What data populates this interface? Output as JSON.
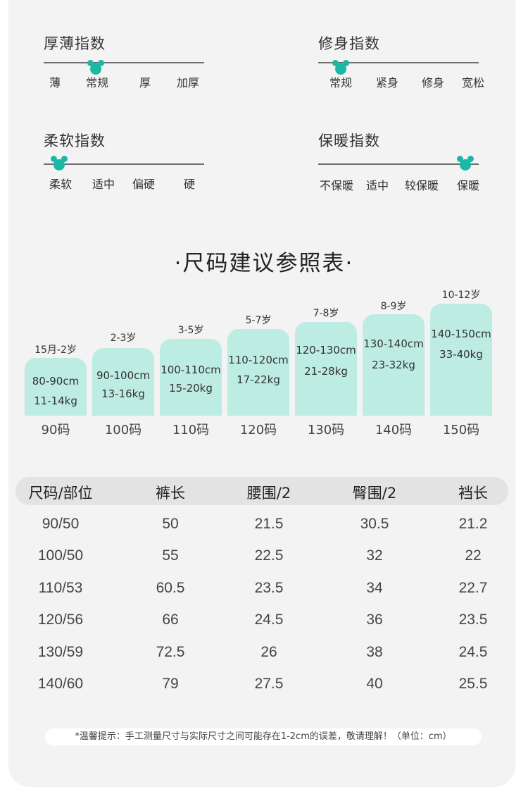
{
  "indices": [
    {
      "title": "厚薄指数",
      "labels": [
        "薄",
        "常规",
        "厚",
        "加厚"
      ],
      "selected_index": 1
    },
    {
      "title": "修身指数",
      "labels": [
        "常规",
        "紧身",
        "修身",
        "宽松"
      ],
      "selected_index": 0
    },
    {
      "title": "柔软指数",
      "labels": [
        "柔软",
        "适中",
        "偏硬",
        "硬"
      ],
      "selected_index": 0
    },
    {
      "title": "保暖指数",
      "labels": [
        "不保暖",
        "适中",
        "较保暖",
        "保暖"
      ],
      "selected_index": 3
    }
  ],
  "size_guide": {
    "title": "·尺码建议参照表·",
    "bars": [
      {
        "age": "15月-2岁",
        "height": "80-90cm",
        "weight": "11-14kg",
        "size": "90码"
      },
      {
        "age": "2-3岁",
        "height": "90-100cm",
        "weight": "13-16kg",
        "size": "100码"
      },
      {
        "age": "3-5岁",
        "height": "100-110cm",
        "weight": "15-20kg",
        "size": "110码"
      },
      {
        "age": "5-7岁",
        "height": "110-120cm",
        "weight": "17-22kg",
        "size": "120码"
      },
      {
        "age": "7-8岁",
        "height": "120-130cm",
        "weight": "21-28kg",
        "size": "130码"
      },
      {
        "age": "8-9岁",
        "height": "130-140cm",
        "weight": "23-32kg",
        "size": "140码"
      },
      {
        "age": "10-12岁",
        "height": "140-150cm",
        "weight": "33-40kg",
        "size": "150码"
      }
    ]
  },
  "measurement_table": {
    "headers": [
      "尺码/部位",
      "裤长",
      "腰围/2",
      "臀围/2",
      "裆长"
    ],
    "rows": [
      [
        "90/50",
        "50",
        "21.5",
        "30.5",
        "21.2"
      ],
      [
        "100/50",
        "55",
        "22.5",
        "32",
        "22"
      ],
      [
        "110/53",
        "60.5",
        "23.5",
        "34",
        "22.7"
      ],
      [
        "120/56",
        "66",
        "24.5",
        "36",
        "23.5"
      ],
      [
        "130/59",
        "72.5",
        "26",
        "38",
        "24.5"
      ],
      [
        "140/60",
        "79",
        "27.5",
        "40",
        "25.5"
      ]
    ]
  },
  "note": "*温馨提示：手工测量尺寸与实际尺寸之间可能存在1-2cm的误差，敬请理解！（单位：cm）",
  "colors": {
    "accent": "#1bb8a6",
    "bar_fill": "#bdece2",
    "card_bg": "#f3f3f3",
    "header_bg": "#e3e3e3"
  }
}
